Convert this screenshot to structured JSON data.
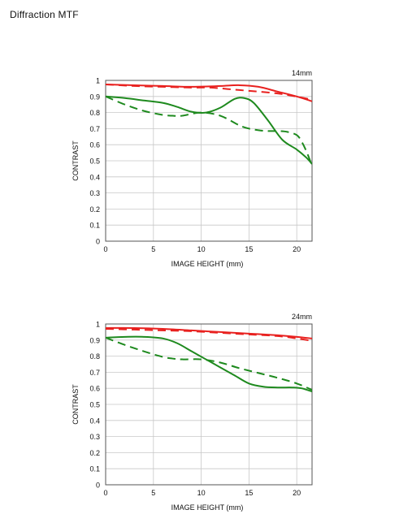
{
  "page": {
    "title": "Diffraction  MTF"
  },
  "colors": {
    "red": "#e8211f",
    "green": "#1e8a1e",
    "grid": "#c8c8c8",
    "frame": "#555555"
  },
  "chart_data": [
    {
      "type": "line",
      "focal_label": "14mm",
      "xlabel": "IMAGE HEIGHT (mm)",
      "ylabel": "CONTRAST",
      "xlim": [
        0,
        21.6
      ],
      "ylim": [
        0,
        1
      ],
      "xticks": [
        0,
        5,
        10,
        15,
        20
      ],
      "yticks": [
        0,
        0.1,
        0.2,
        0.3,
        0.4,
        0.5,
        0.6,
        0.7,
        0.8,
        0.9,
        1
      ],
      "grid": true,
      "series": [
        {
          "color": "red",
          "dash": false,
          "x": [
            0,
            3,
            6,
            9,
            12,
            14,
            16,
            18,
            20,
            21.6
          ],
          "y": [
            0.975,
            0.97,
            0.965,
            0.96,
            0.965,
            0.97,
            0.96,
            0.93,
            0.9,
            0.87
          ]
        },
        {
          "color": "red",
          "dash": true,
          "x": [
            0,
            3,
            6,
            9,
            11,
            13,
            15,
            17,
            19,
            21.6
          ],
          "y": [
            0.975,
            0.965,
            0.96,
            0.955,
            0.955,
            0.945,
            0.935,
            0.925,
            0.91,
            0.88
          ]
        },
        {
          "color": "green",
          "dash": false,
          "x": [
            0,
            2,
            4,
            6,
            7.5,
            9,
            10.5,
            12,
            13.5,
            14.5,
            15.5,
            17,
            18.5,
            20,
            21,
            21.6
          ],
          "y": [
            0.9,
            0.89,
            0.875,
            0.86,
            0.835,
            0.805,
            0.8,
            0.83,
            0.885,
            0.89,
            0.86,
            0.75,
            0.63,
            0.57,
            0.52,
            0.48
          ]
        },
        {
          "color": "green",
          "dash": true,
          "x": [
            0,
            2,
            4,
            6,
            7,
            8,
            10,
            12,
            14,
            15,
            16,
            17,
            18,
            19,
            20,
            20.5,
            21,
            21.6
          ],
          "y": [
            0.9,
            0.85,
            0.81,
            0.785,
            0.78,
            0.78,
            0.8,
            0.78,
            0.72,
            0.7,
            0.69,
            0.685,
            0.685,
            0.68,
            0.66,
            0.62,
            0.56,
            0.47
          ]
        }
      ]
    },
    {
      "type": "line",
      "focal_label": "24mm",
      "xlabel": "IMAGE HEIGHT (mm)",
      "ylabel": "CONTRAST",
      "xlim": [
        0,
        21.6
      ],
      "ylim": [
        0,
        1
      ],
      "xticks": [
        0,
        5,
        10,
        15,
        20
      ],
      "yticks": [
        0,
        0.1,
        0.2,
        0.3,
        0.4,
        0.5,
        0.6,
        0.7,
        0.8,
        0.9,
        1
      ],
      "grid": true,
      "series": [
        {
          "color": "red",
          "dash": false,
          "x": [
            0,
            3,
            6,
            9,
            12,
            15,
            18,
            20,
            21.6
          ],
          "y": [
            0.975,
            0.975,
            0.97,
            0.96,
            0.95,
            0.94,
            0.93,
            0.92,
            0.91
          ]
        },
        {
          "color": "red",
          "dash": true,
          "x": [
            0,
            3,
            6,
            9,
            12,
            15,
            18,
            20,
            21.6
          ],
          "y": [
            0.97,
            0.965,
            0.96,
            0.955,
            0.945,
            0.935,
            0.925,
            0.91,
            0.895
          ]
        },
        {
          "color": "green",
          "dash": false,
          "x": [
            0,
            2,
            4,
            6,
            7.5,
            9,
            10.5,
            12,
            13.5,
            15,
            16.5,
            18,
            19.5,
            20.5,
            21.6
          ],
          "y": [
            0.915,
            0.92,
            0.92,
            0.91,
            0.88,
            0.83,
            0.78,
            0.73,
            0.68,
            0.63,
            0.61,
            0.605,
            0.605,
            0.6,
            0.58
          ]
        },
        {
          "color": "green",
          "dash": true,
          "x": [
            0,
            2,
            4,
            6,
            7,
            8,
            10,
            12,
            14,
            16,
            18,
            20,
            21.6
          ],
          "y": [
            0.915,
            0.87,
            0.83,
            0.795,
            0.785,
            0.78,
            0.78,
            0.76,
            0.725,
            0.695,
            0.665,
            0.63,
            0.59
          ]
        }
      ]
    }
  ]
}
